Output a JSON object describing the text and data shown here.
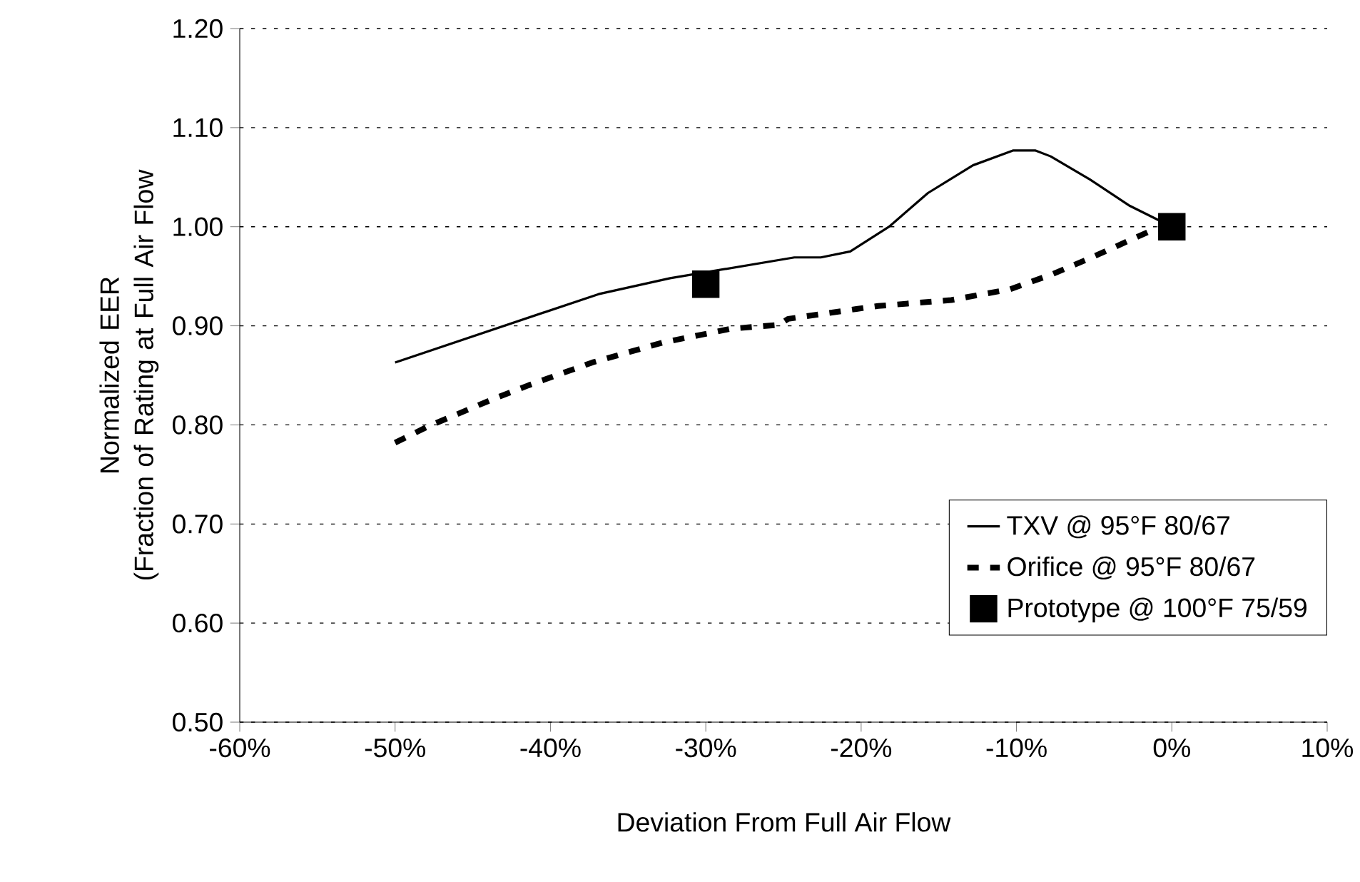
{
  "chart_data": {
    "type": "line",
    "xlabel": "Deviation From Full Air Flow",
    "ylabel": "Normalized EER\n(Fraction of Rating at Full Air Flow",
    "xlim": [
      -60,
      10
    ],
    "xticks": [
      {
        "value": -60,
        "label": "-60%"
      },
      {
        "value": -50,
        "label": "-50%"
      },
      {
        "value": -40,
        "label": "-40%"
      },
      {
        "value": -30,
        "label": "-30%"
      },
      {
        "value": -20,
        "label": "-20%"
      },
      {
        "value": -10,
        "label": "-10%"
      },
      {
        "value": 0,
        "label": "0%"
      },
      {
        "value": 10,
        "label": "10%"
      }
    ],
    "ylim": [
      0.5,
      1.2
    ],
    "yticks": [
      {
        "value": 0.5,
        "label": "0.50"
      },
      {
        "value": 0.6,
        "label": "0.60"
      },
      {
        "value": 0.7,
        "label": "0.70"
      },
      {
        "value": 0.8,
        "label": "0.80"
      },
      {
        "value": 0.9,
        "label": "0.90"
      },
      {
        "value": 1.0,
        "label": "1.00"
      },
      {
        "value": 1.1,
        "label": "1.10"
      },
      {
        "value": 1.2,
        "label": "1.20"
      }
    ],
    "grid": "y",
    "legend": "bottom right",
    "series": [
      {
        "name": "TXV @ 95°F 80/67",
        "color": "#000000",
        "line_style": "solid",
        "marker": "none",
        "x": [
          -50,
          -36.9,
          -32.3,
          -24.3,
          -22.6,
          -20.7,
          -18.2,
          -15.7,
          -12.8,
          -10.2,
          -8.8,
          -7.8,
          -5.3,
          -2.7,
          0
        ],
        "values": [
          0.863,
          0.932,
          0.948,
          0.969,
          0.969,
          0.975,
          1.0,
          1.034,
          1.062,
          1.077,
          1.077,
          1.071,
          1.048,
          1.021,
          1.0
        ]
      },
      {
        "name": "Orifice @ 95°F 80/67",
        "color": "#000000",
        "line_style": "dashed",
        "marker": "none",
        "x": [
          -50,
          -47.8,
          -43.7,
          -41.4,
          -37.3,
          -32.8,
          -28.4,
          -25.3,
          -24.7,
          -20.3,
          -18.9,
          -14.2,
          -10.4,
          -7.7,
          -5.3,
          -1.2,
          0
        ],
        "values": [
          0.782,
          0.799,
          0.826,
          0.84,
          0.863,
          0.883,
          0.897,
          0.901,
          0.907,
          0.917,
          0.92,
          0.926,
          0.937,
          0.952,
          0.968,
          0.997,
          1.0
        ]
      },
      {
        "name": "Prototype @ 100°F 75/59",
        "type": "scatter",
        "color": "#000000",
        "marker": "square",
        "x": [
          -30,
          0
        ],
        "values": [
          0.942,
          1.0
        ]
      }
    ]
  }
}
